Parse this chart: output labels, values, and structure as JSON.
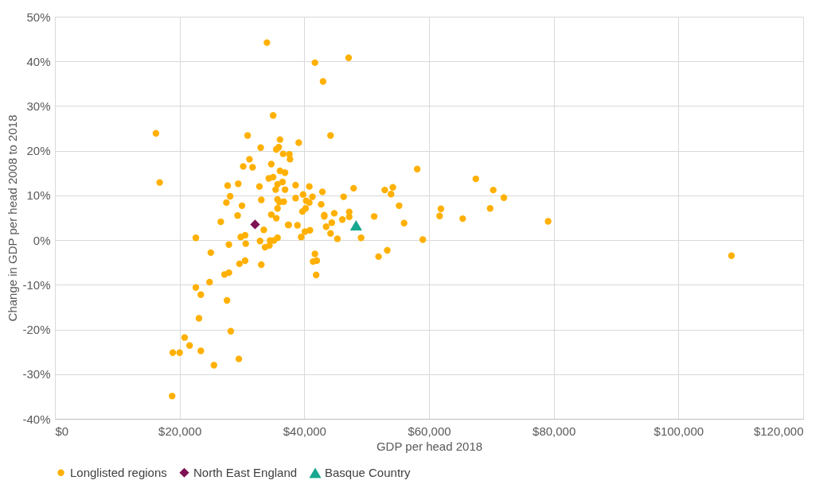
{
  "chart_data": {
    "type": "scatter",
    "xlabel": "GDP per head 2018",
    "ylabel": "Change in GDP per head 2008 to 2018",
    "xlim": [
      0,
      120000
    ],
    "ylim": [
      -40,
      50
    ],
    "xticks": [
      {
        "value": 0,
        "label": "$0"
      },
      {
        "value": 20000,
        "label": "$20,000"
      },
      {
        "value": 40000,
        "label": "$40,000"
      },
      {
        "value": 60000,
        "label": "$60,000"
      },
      {
        "value": 80000,
        "label": "$80,000"
      },
      {
        "value": 100000,
        "label": "$100,000"
      },
      {
        "value": 120000,
        "label": "$120,000"
      }
    ],
    "yticks": [
      {
        "value": -40,
        "label": "-40%"
      },
      {
        "value": -30,
        "label": "-30%"
      },
      {
        "value": -20,
        "label": "-20%"
      },
      {
        "value": -10,
        "label": "-10%"
      },
      {
        "value": 0,
        "label": "0%"
      },
      {
        "value": 10,
        "label": "10%"
      },
      {
        "value": 20,
        "label": "20%"
      },
      {
        "value": 30,
        "label": "30%"
      },
      {
        "value": 40,
        "label": "40%"
      },
      {
        "value": 50,
        "label": "50%"
      }
    ],
    "grid": true,
    "legend": "bottom",
    "series": [
      {
        "name": "Longlisted regions",
        "color": "#ffb000",
        "marker": "circle",
        "x": [
          34000,
          35000,
          16200,
          30900,
          36100,
          33000,
          35500,
          35900,
          36600,
          31200,
          30200,
          31700,
          34700,
          16800,
          36100,
          36900,
          34300,
          35000,
          35700,
          36500,
          32800,
          27700,
          29400,
          35400,
          36900,
          28100,
          27500,
          33100,
          35700,
          36000,
          36700,
          35700,
          30000,
          29300,
          26600,
          34700,
          35500,
          37400,
          33500,
          22600,
          29800,
          30500,
          27900,
          30600,
          32900,
          34500,
          35100,
          35700,
          33700,
          34400,
          25000,
          29600,
          30500,
          33100,
          27200,
          27900,
          24800,
          22600,
          23400,
          27600,
          23100,
          28200,
          20800,
          21600,
          18900,
          20000,
          23400,
          25500,
          29500,
          18800,
          41700,
          47100,
          43000,
          44200,
          39100,
          37600,
          37700,
          58100,
          38600,
          40800,
          42900,
          47900,
          52900,
          54200,
          53900,
          38600,
          39800,
          40300,
          40800,
          41300,
          46300,
          42700,
          55200,
          61900,
          61700,
          40200,
          39700,
          43200,
          43200,
          44800,
          47200,
          47200,
          46100,
          44400,
          43500,
          51200,
          56000,
          37500,
          38900,
          40100,
          40900,
          44200,
          39500,
          45300,
          49100,
          59000,
          53300,
          51900,
          41700,
          41400,
          42000,
          41900,
          67500,
          70300,
          72000,
          69800,
          65400,
          79100,
          108500
        ],
        "values": [
          44.2,
          27.9,
          23.9,
          23.4,
          22.5,
          20.7,
          20.3,
          20.8,
          19.3,
          18.1,
          16.5,
          16.3,
          17.0,
          12.9,
          15.5,
          15.1,
          13.8,
          14.1,
          12.5,
          13.0,
          12.0,
          12.2,
          12.6,
          11.3,
          11.3,
          9.8,
          8.4,
          9.0,
          9.1,
          8.5,
          8.6,
          7.1,
          7.7,
          5.5,
          4.1,
          5.7,
          4.9,
          3.4,
          2.3,
          0.5,
          0.7,
          1.1,
          -1.0,
          -0.8,
          -0.2,
          -0.1,
          -0.1,
          0.5,
          -1.6,
          -1.2,
          -2.8,
          -5.3,
          -4.6,
          -5.5,
          -7.7,
          -7.3,
          -9.4,
          -10.6,
          -12.2,
          -13.5,
          -17.5,
          -20.4,
          -21.8,
          -23.6,
          -25.2,
          -25.2,
          -24.8,
          -28.0,
          -26.6,
          -34.9,
          39.7,
          40.8,
          35.5,
          23.4,
          21.8,
          19.2,
          18.1,
          15.9,
          12.3,
          12.0,
          10.8,
          11.6,
          11.2,
          11.8,
          10.3,
          9.4,
          10.2,
          8.8,
          8.4,
          9.7,
          9.7,
          8.0,
          7.7,
          7.0,
          5.4,
          7.1,
          6.4,
          5.6,
          5.3,
          6.0,
          6.3,
          5.2,
          4.6,
          3.9,
          3.0,
          5.3,
          3.8,
          3.4,
          3.3,
          1.9,
          2.2,
          1.5,
          0.7,
          0.3,
          0.5,
          0.1,
          -2.3,
          -3.7,
          -3.1,
          -4.8,
          -4.6,
          -7.8,
          13.7,
          11.2,
          9.5,
          7.1,
          4.8,
          4.2,
          -3.5
        ]
      },
      {
        "name": "North East England",
        "color": "#7f1155",
        "marker": "diamond",
        "x": [
          32100
        ],
        "values": [
          3.5
        ]
      },
      {
        "name": "Basque Country",
        "color": "#17a88f",
        "marker": "triangle",
        "x": [
          48300
        ],
        "values": [
          3.3
        ]
      }
    ]
  }
}
